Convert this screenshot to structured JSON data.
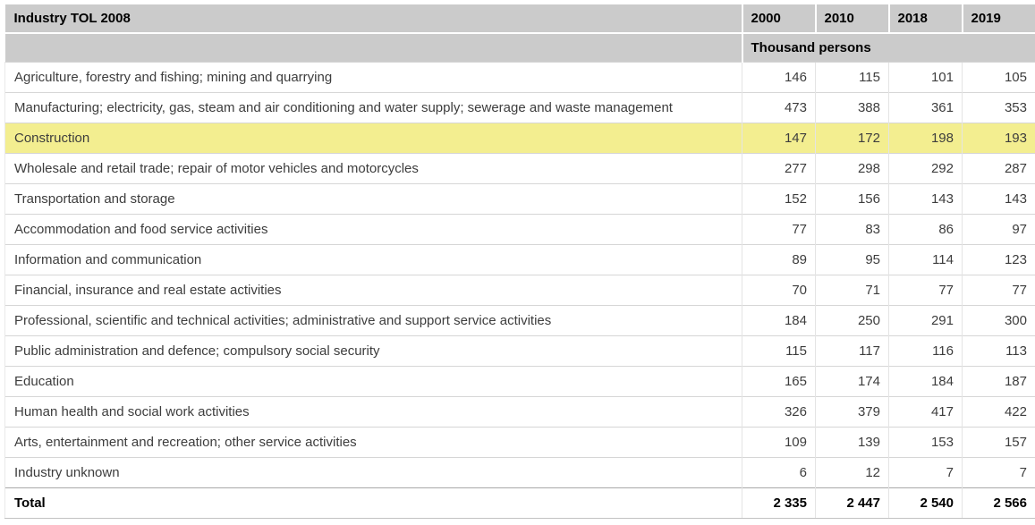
{
  "table": {
    "header": {
      "label": "Industry TOL 2008",
      "years": [
        "2000",
        "2010",
        "2018",
        "2019"
      ],
      "unit": "Thousand persons"
    },
    "rows": [
      {
        "label": "Agriculture, forestry and fishing; mining and quarrying",
        "values": [
          "146",
          "115",
          "101",
          "105"
        ],
        "highlight": false
      },
      {
        "label": "Manufacturing; electricity, gas, steam and air conditioning and water supply; sewerage and waste management",
        "values": [
          "473",
          "388",
          "361",
          "353"
        ],
        "highlight": false
      },
      {
        "label": "Construction",
        "values": [
          "147",
          "172",
          "198",
          "193"
        ],
        "highlight": true
      },
      {
        "label": "Wholesale and retail trade; repair of motor vehicles and motorcycles",
        "values": [
          "277",
          "298",
          "292",
          "287"
        ],
        "highlight": false
      },
      {
        "label": "Transportation and storage",
        "values": [
          "152",
          "156",
          "143",
          "143"
        ],
        "highlight": false
      },
      {
        "label": "Accommodation and food service activities",
        "values": [
          "77",
          "83",
          "86",
          "97"
        ],
        "highlight": false
      },
      {
        "label": "Information and communication",
        "values": [
          "89",
          "95",
          "114",
          "123"
        ],
        "highlight": false
      },
      {
        "label": "Financial, insurance and real estate activities",
        "values": [
          "70",
          "71",
          "77",
          "77"
        ],
        "highlight": false
      },
      {
        "label": "Professional, scientific and technical activities; administrative and support service activities",
        "values": [
          "184",
          "250",
          "291",
          "300"
        ],
        "highlight": false
      },
      {
        "label": "Public administration and defence; compulsory social security",
        "values": [
          "115",
          "117",
          "116",
          "113"
        ],
        "highlight": false
      },
      {
        "label": "Education",
        "values": [
          "165",
          "174",
          "184",
          "187"
        ],
        "highlight": false
      },
      {
        "label": "Human health and social work activities",
        "values": [
          "326",
          "379",
          "417",
          "422"
        ],
        "highlight": false
      },
      {
        "label": "Arts, entertainment and recreation; other service activities",
        "values": [
          "109",
          "139",
          "153",
          "157"
        ],
        "highlight": false
      },
      {
        "label": "Industry unknown",
        "values": [
          "6",
          "12",
          "7",
          "7"
        ],
        "highlight": false
      }
    ],
    "total": {
      "label": "Total",
      "values": [
        "2 335",
        "2 447",
        "2 540",
        "2 566"
      ]
    },
    "colors": {
      "header_bg": "#cbcbcb",
      "highlight_bg": "#f3ee90",
      "row_border": "#d6d6d6",
      "total_border": "#a8a8a8"
    }
  },
  "chart_data": {
    "type": "table",
    "title": "Industry TOL 2008",
    "unit": "Thousand persons",
    "columns": [
      "2000",
      "2010",
      "2018",
      "2019"
    ],
    "rows": [
      {
        "industry": "Agriculture, forestry and fishing; mining and quarrying",
        "values": [
          146,
          115,
          101,
          105
        ]
      },
      {
        "industry": "Manufacturing; electricity, gas, steam and air conditioning and water supply; sewerage and waste management",
        "values": [
          473,
          388,
          361,
          353
        ]
      },
      {
        "industry": "Construction",
        "values": [
          147,
          172,
          198,
          193
        ]
      },
      {
        "industry": "Wholesale and retail trade; repair of motor vehicles and motorcycles",
        "values": [
          277,
          298,
          292,
          287
        ]
      },
      {
        "industry": "Transportation and storage",
        "values": [
          152,
          156,
          143,
          143
        ]
      },
      {
        "industry": "Accommodation and food service activities",
        "values": [
          77,
          83,
          86,
          97
        ]
      },
      {
        "industry": "Information and communication",
        "values": [
          89,
          95,
          114,
          123
        ]
      },
      {
        "industry": "Financial, insurance and real estate activities",
        "values": [
          70,
          71,
          77,
          77
        ]
      },
      {
        "industry": "Professional, scientific and technical activities; administrative and support service activities",
        "values": [
          184,
          250,
          291,
          300
        ]
      },
      {
        "industry": "Public administration and defence; compulsory social security",
        "values": [
          115,
          117,
          116,
          113
        ]
      },
      {
        "industry": "Education",
        "values": [
          165,
          174,
          184,
          187
        ]
      },
      {
        "industry": "Human health and social work activities",
        "values": [
          326,
          379,
          417,
          422
        ]
      },
      {
        "industry": "Arts, entertainment and recreation; other service activities",
        "values": [
          109,
          139,
          153,
          157
        ]
      },
      {
        "industry": "Industry unknown",
        "values": [
          6,
          12,
          7,
          7
        ]
      }
    ],
    "total": {
      "industry": "Total",
      "values": [
        2335,
        2447,
        2540,
        2566
      ]
    },
    "highlighted_row": "Construction"
  }
}
